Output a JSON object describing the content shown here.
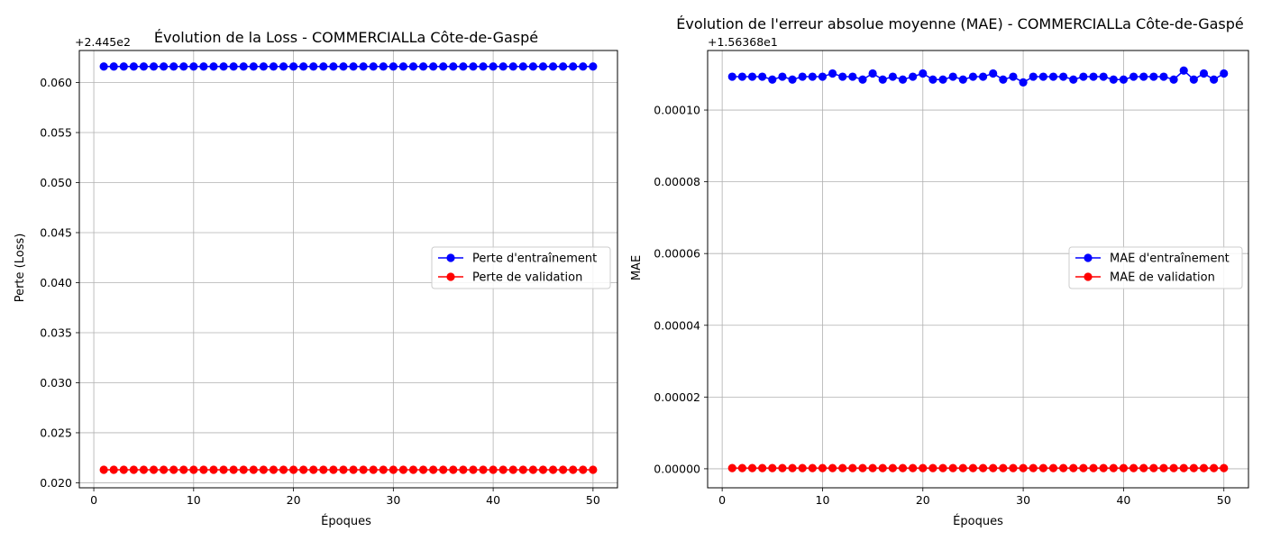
{
  "chart_data": [
    {
      "type": "line",
      "title": "Évolution de la Loss - COMMERCIALLa Côte-de-Gaspé",
      "xlabel": "Époques",
      "ylabel": "Perte (Loss)",
      "offset_label": "+2.445e2",
      "x": [
        1,
        2,
        3,
        4,
        5,
        6,
        7,
        8,
        9,
        10,
        11,
        12,
        13,
        14,
        15,
        16,
        17,
        18,
        19,
        20,
        21,
        22,
        23,
        24,
        25,
        26,
        27,
        28,
        29,
        30,
        31,
        32,
        33,
        34,
        35,
        36,
        37,
        38,
        39,
        40,
        41,
        42,
        43,
        44,
        45,
        46,
        47,
        48,
        49,
        50
      ],
      "xlim": [
        -1.45,
        52.45
      ],
      "ylim": [
        0.0195,
        0.0632
      ],
      "xticks": [
        0,
        10,
        20,
        30,
        40,
        50
      ],
      "xtick_labels": [
        "0",
        "10",
        "20",
        "30",
        "40",
        "50"
      ],
      "yticks": [
        0.02,
        0.025,
        0.03,
        0.035,
        0.04,
        0.045,
        0.05,
        0.055,
        0.06
      ],
      "ytick_labels": [
        "0.020",
        "0.025",
        "0.030",
        "0.035",
        "0.040",
        "0.045",
        "0.050",
        "0.055",
        "0.060"
      ],
      "grid": true,
      "legend_position": "center-right",
      "series": [
        {
          "name": "Perte d'entraînement",
          "color": "#0000ff",
          "values": [
            0.0616,
            0.0616,
            0.0616,
            0.0616,
            0.0616,
            0.0616,
            0.0616,
            0.0616,
            0.0616,
            0.0616,
            0.0616,
            0.0616,
            0.0616,
            0.0616,
            0.0616,
            0.0616,
            0.0616,
            0.0616,
            0.0616,
            0.0616,
            0.0616,
            0.0616,
            0.0616,
            0.0616,
            0.0616,
            0.0616,
            0.0616,
            0.0616,
            0.0616,
            0.0616,
            0.0616,
            0.0616,
            0.0616,
            0.0616,
            0.0616,
            0.0616,
            0.0616,
            0.0616,
            0.0616,
            0.0616,
            0.0616,
            0.0616,
            0.0616,
            0.0616,
            0.0616,
            0.0616,
            0.0616,
            0.0616,
            0.0616,
            0.0616
          ]
        },
        {
          "name": "Perte de validation",
          "color": "#ff0000",
          "values": [
            0.0213,
            0.0213,
            0.0213,
            0.0213,
            0.0213,
            0.0213,
            0.0213,
            0.0213,
            0.0213,
            0.0213,
            0.0213,
            0.0213,
            0.0213,
            0.0213,
            0.0213,
            0.0213,
            0.0213,
            0.0213,
            0.0213,
            0.0213,
            0.0213,
            0.0213,
            0.0213,
            0.0213,
            0.0213,
            0.0213,
            0.0213,
            0.0213,
            0.0213,
            0.0213,
            0.0213,
            0.0213,
            0.0213,
            0.0213,
            0.0213,
            0.0213,
            0.0213,
            0.0213,
            0.0213,
            0.0213,
            0.0213,
            0.0213,
            0.0213,
            0.0213,
            0.0213,
            0.0213,
            0.0213,
            0.0213,
            0.0213,
            0.0213
          ]
        }
      ]
    },
    {
      "type": "line",
      "title": "Évolution de l'erreur absolue moyenne (MAE) - COMMERCIALLa Côte-de-Gaspé",
      "xlabel": "Époques",
      "ylabel": "MAE",
      "offset_label": "+1.56368e1",
      "x": [
        1,
        2,
        3,
        4,
        5,
        6,
        7,
        8,
        9,
        10,
        11,
        12,
        13,
        14,
        15,
        16,
        17,
        18,
        19,
        20,
        21,
        22,
        23,
        24,
        25,
        26,
        27,
        28,
        29,
        30,
        31,
        32,
        33,
        34,
        35,
        36,
        37,
        38,
        39,
        40,
        41,
        42,
        43,
        44,
        45,
        46,
        47,
        48,
        49,
        50
      ],
      "xlim": [
        -1.45,
        52.45
      ],
      "ylim": [
        -5.3e-06,
        0.0001166
      ],
      "xticks": [
        0,
        10,
        20,
        30,
        40,
        50
      ],
      "xtick_labels": [
        "0",
        "10",
        "20",
        "30",
        "40",
        "50"
      ],
      "yticks": [
        0.0,
        2e-05,
        4e-05,
        6e-05,
        8e-05,
        0.0001
      ],
      "ytick_labels": [
        "0.00000",
        "0.00002",
        "0.00004",
        "0.00006",
        "0.00008",
        "0.00010"
      ],
      "grid": true,
      "legend_position": "center-right",
      "series": [
        {
          "name": "MAE d'entraînement",
          "color": "#0000ff",
          "values": [
            0.0001093,
            0.0001093,
            0.0001093,
            0.0001093,
            0.0001085,
            0.0001093,
            0.0001085,
            0.0001093,
            0.0001093,
            0.0001093,
            0.0001102,
            0.0001093,
            0.0001093,
            0.0001085,
            0.0001102,
            0.0001085,
            0.0001093,
            0.0001085,
            0.0001093,
            0.0001102,
            0.0001085,
            0.0001085,
            0.0001093,
            0.0001085,
            0.0001093,
            0.0001093,
            0.0001102,
            0.0001085,
            0.0001093,
            0.0001077,
            0.0001093,
            0.0001093,
            0.0001093,
            0.0001093,
            0.0001085,
            0.0001093,
            0.0001093,
            0.0001093,
            0.0001085,
            0.0001085,
            0.0001093,
            0.0001093,
            0.0001093,
            0.0001093,
            0.0001085,
            0.000111,
            0.0001085,
            0.0001102,
            0.0001085,
            0.0001102
          ]
        },
        {
          "name": "MAE de validation",
          "color": "#ff0000",
          "values": [
            2e-07,
            2e-07,
            2e-07,
            2e-07,
            2e-07,
            2e-07,
            2e-07,
            2e-07,
            2e-07,
            2e-07,
            2e-07,
            2e-07,
            2e-07,
            2e-07,
            2e-07,
            2e-07,
            2e-07,
            2e-07,
            2e-07,
            2e-07,
            2e-07,
            2e-07,
            2e-07,
            2e-07,
            2e-07,
            2e-07,
            2e-07,
            2e-07,
            2e-07,
            2e-07,
            2e-07,
            2e-07,
            2e-07,
            2e-07,
            2e-07,
            2e-07,
            2e-07,
            2e-07,
            2e-07,
            2e-07,
            2e-07,
            2e-07,
            2e-07,
            2e-07,
            2e-07,
            2e-07,
            2e-07,
            2e-07,
            2e-07,
            2e-07
          ]
        }
      ]
    }
  ]
}
